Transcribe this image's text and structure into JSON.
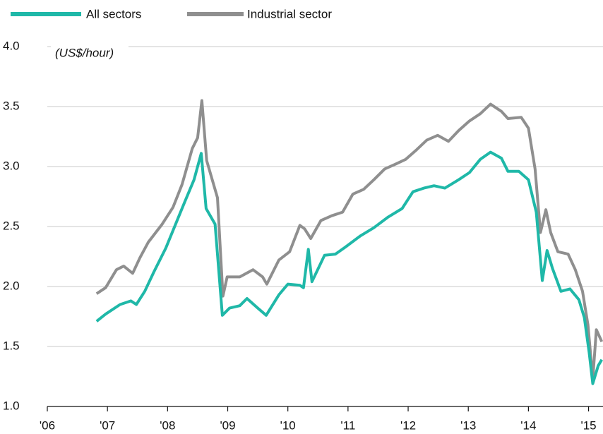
{
  "chart_data": {
    "type": "line",
    "y_label": "(US$/hour)",
    "xlim": [
      2006,
      2015.24
    ],
    "xticks": [
      {
        "value": 2006,
        "label": "'06"
      },
      {
        "value": 2007,
        "label": "'07"
      },
      {
        "value": 2008,
        "label": "'08"
      },
      {
        "value": 2009,
        "label": "'09"
      },
      {
        "value": 2010,
        "label": "'10"
      },
      {
        "value": 2011,
        "label": "'11"
      },
      {
        "value": 2012,
        "label": "'12"
      },
      {
        "value": 2013,
        "label": "'13"
      },
      {
        "value": 2014,
        "label": "'14"
      },
      {
        "value": 2015,
        "label": "'15"
      }
    ],
    "ylim": [
      1,
      4
    ],
    "yticks": [
      {
        "value": 1,
        "label": "1.0"
      },
      {
        "value": 1.5,
        "label": "1.5"
      },
      {
        "value": 2,
        "label": "2.0"
      },
      {
        "value": 2.5,
        "label": "2.5"
      },
      {
        "value": 3,
        "label": "3.0"
      },
      {
        "value": 3.5,
        "label": "3.5"
      },
      {
        "value": 4,
        "label": "4.0"
      }
    ],
    "grid": true,
    "legend": "top",
    "series": [
      {
        "name": "All sectors",
        "color": "#1fb8a8",
        "x": [
          2006.82,
          2006.97,
          2007.21,
          2007.39,
          2007.48,
          2007.62,
          2007.77,
          2007.97,
          2008.15,
          2008.29,
          2008.44,
          2008.56,
          2008.64,
          2008.79,
          2008.91,
          2009.03,
          2009.2,
          2009.32,
          2009.5,
          2009.64,
          2009.85,
          2010.0,
          2010.2,
          2010.26,
          2010.34,
          2010.4,
          2010.61,
          2010.79,
          2010.96,
          2011.2,
          2011.43,
          2011.67,
          2011.9,
          2012.08,
          2012.26,
          2012.43,
          2012.61,
          2012.84,
          2013.02,
          2013.2,
          2013.37,
          2013.55,
          2013.66,
          2013.84,
          2014.0,
          2014.13,
          2014.23,
          2014.31,
          2014.4,
          2014.54,
          2014.69,
          2014.84,
          2014.93,
          2015.01,
          2015.07,
          2015.16,
          2015.22
        ],
        "values": [
          1.71,
          1.77,
          1.85,
          1.88,
          1.85,
          1.96,
          2.12,
          2.32,
          2.54,
          2.71,
          2.89,
          3.11,
          2.65,
          2.52,
          1.76,
          1.82,
          1.84,
          1.9,
          1.82,
          1.76,
          1.93,
          2.02,
          2.01,
          1.99,
          2.31,
          2.04,
          2.26,
          2.27,
          2.33,
          2.42,
          2.49,
          2.58,
          2.65,
          2.79,
          2.82,
          2.84,
          2.82,
          2.89,
          2.95,
          3.06,
          3.12,
          3.07,
          2.96,
          2.96,
          2.89,
          2.62,
          2.05,
          2.3,
          2.15,
          1.96,
          1.98,
          1.89,
          1.74,
          1.45,
          1.19,
          1.34,
          1.39
        ]
      },
      {
        "name": "Industrial sector",
        "color": "#8f8f8f",
        "x": [
          2006.82,
          2006.97,
          2007.15,
          2007.27,
          2007.42,
          2007.54,
          2007.68,
          2007.91,
          2008.09,
          2008.24,
          2008.41,
          2008.5,
          2008.57,
          2008.65,
          2008.83,
          2008.92,
          2008.99,
          2009.2,
          2009.42,
          2009.58,
          2009.65,
          2009.85,
          2010.03,
          2010.2,
          2010.28,
          2010.38,
          2010.55,
          2010.73,
          2010.91,
          2011.08,
          2011.26,
          2011.43,
          2011.61,
          2011.79,
          2011.96,
          2012.14,
          2012.31,
          2012.49,
          2012.67,
          2012.84,
          2013.02,
          2013.2,
          2013.37,
          2013.55,
          2013.66,
          2013.88,
          2014.0,
          2014.11,
          2014.2,
          2014.29,
          2014.37,
          2014.49,
          2014.66,
          2014.78,
          2014.9,
          2014.99,
          2015.07,
          2015.13,
          2015.22
        ],
        "values": [
          1.94,
          1.99,
          2.14,
          2.17,
          2.11,
          2.24,
          2.37,
          2.52,
          2.66,
          2.85,
          3.15,
          3.24,
          3.55,
          3.05,
          2.74,
          1.92,
          2.08,
          2.08,
          2.14,
          2.08,
          2.02,
          2.22,
          2.29,
          2.51,
          2.48,
          2.4,
          2.55,
          2.59,
          2.62,
          2.77,
          2.81,
          2.89,
          2.98,
          3.02,
          3.06,
          3.14,
          3.22,
          3.26,
          3.21,
          3.3,
          3.38,
          3.44,
          3.52,
          3.46,
          3.4,
          3.41,
          3.32,
          2.98,
          2.45,
          2.64,
          2.45,
          2.29,
          2.27,
          2.14,
          1.96,
          1.68,
          1.23,
          1.64,
          1.54
        ]
      }
    ]
  }
}
